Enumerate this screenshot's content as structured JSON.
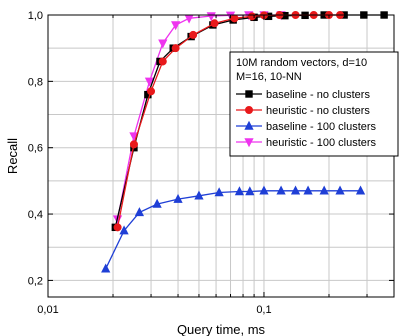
{
  "chart_data": {
    "type": "line",
    "xscale": "log",
    "xlabel": "Query time, ms",
    "ylabel": "Recall",
    "xlim": [
      0.01,
      0.4
    ],
    "ylim": [
      0.15,
      1.0
    ],
    "grid": true,
    "legend_position": "top-right",
    "legend_title": [
      "10M random vectors, d=10",
      "M=16, 10-NN"
    ],
    "x_tick_values": [
      0.01,
      0.1
    ],
    "x_tick_labels": [
      "0,01",
      "0,1"
    ],
    "y_tick_values": [
      0.2,
      0.4,
      0.6,
      0.8,
      1.0
    ],
    "y_tick_labels": [
      "0,2",
      "0,4",
      "0,6",
      "0,8",
      "1,0"
    ],
    "series": [
      {
        "name": "baseline - no clusters",
        "color": "#000000",
        "marker": "square",
        "x": [
          0.0205,
          0.025,
          0.029,
          0.033,
          0.038,
          0.046,
          0.058,
          0.072,
          0.09,
          0.105,
          0.125,
          0.155,
          0.19,
          0.235,
          0.29,
          0.36
        ],
        "y": [
          0.36,
          0.6,
          0.76,
          0.86,
          0.9,
          0.935,
          0.97,
          0.985,
          0.993,
          0.996,
          0.998,
          0.999,
          1.0,
          1.0,
          1.0,
          1.0
        ]
      },
      {
        "name": "heuristic - no clusters",
        "color": "#e8191b",
        "marker": "circle",
        "x": [
          0.021,
          0.025,
          0.03,
          0.034,
          0.039,
          0.047,
          0.059,
          0.073,
          0.088,
          0.1,
          0.118,
          0.14,
          0.17,
          0.2,
          0.225
        ],
        "y": [
          0.36,
          0.61,
          0.77,
          0.86,
          0.9,
          0.94,
          0.975,
          0.99,
          0.996,
          0.999,
          1.0,
          1.0,
          1.0,
          1.0,
          1.0
        ]
      },
      {
        "name": "baseline - 100 clusters",
        "color": "#1f3fd6",
        "marker": "triangle-up",
        "x": [
          0.0185,
          0.0225,
          0.0265,
          0.032,
          0.04,
          0.05,
          0.062,
          0.077,
          0.086,
          0.1,
          0.12,
          0.14,
          0.16,
          0.19,
          0.225,
          0.28
        ],
        "y": [
          0.235,
          0.35,
          0.405,
          0.43,
          0.445,
          0.455,
          0.465,
          0.468,
          0.468,
          0.47,
          0.47,
          0.47,
          0.47,
          0.47,
          0.47,
          0.47
        ]
      },
      {
        "name": "heuristic - 100 clusters",
        "color": "#ee34ee",
        "marker": "triangle-down",
        "x": [
          0.021,
          0.025,
          0.0295,
          0.034,
          0.039,
          0.045,
          0.057,
          0.07,
          0.085,
          0.1,
          0.12
        ],
        "y": [
          0.385,
          0.635,
          0.8,
          0.915,
          0.97,
          0.99,
          0.997,
          0.999,
          1.0,
          1.0,
          1.0
        ]
      }
    ]
  }
}
